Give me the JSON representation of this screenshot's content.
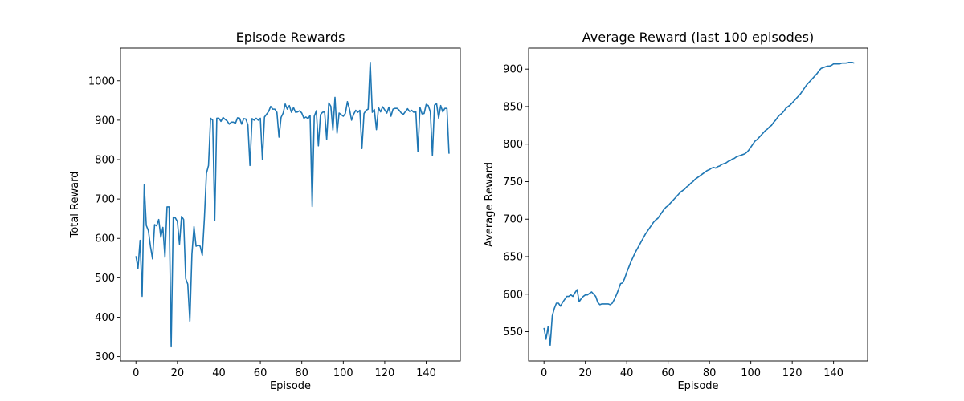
{
  "chart_data": [
    {
      "type": "line",
      "title": "Episode Rewards",
      "xlabel": "Episode",
      "ylabel": "Total Reward",
      "xlim": [
        -7.45,
        156.45
      ],
      "ylim": [
        289,
        1083
      ],
      "xticks": [
        0,
        20,
        40,
        60,
        80,
        100,
        120,
        140
      ],
      "yticks": [
        300,
        400,
        500,
        600,
        700,
        800,
        900,
        1000
      ],
      "grid": false,
      "color": "#1f77b4",
      "series": [
        {
          "values": [
            555,
            524,
            595,
            453,
            736,
            633,
            620,
            580,
            548,
            635,
            632,
            648,
            603,
            628,
            552,
            680,
            680,
            325,
            654,
            652,
            643,
            585,
            656,
            648,
            498,
            484,
            390,
            560,
            630,
            580,
            583,
            580,
            557,
            650,
            765,
            785,
            905,
            900,
            645,
            905,
            905,
            897,
            907,
            902,
            898,
            890,
            895,
            895,
            892,
            906,
            905,
            890,
            904,
            903,
            888,
            785,
            904,
            900,
            905,
            900,
            905,
            800,
            908,
            915,
            922,
            935,
            928,
            928,
            920,
            857,
            907,
            918,
            941,
            928,
            937,
            920,
            932,
            920,
            921,
            924,
            918,
            905,
            908,
            904,
            912,
            681,
            910,
            924,
            835,
            914,
            920,
            921,
            851,
            944,
            935,
            875,
            958,
            867,
            918,
            914,
            910,
            917,
            947,
            928,
            900,
            915,
            925,
            920,
            925,
            828,
            917,
            925,
            928,
            1047,
            920,
            927,
            876,
            932,
            921,
            934,
            926,
            918,
            933,
            910,
            928,
            930,
            930,
            925,
            918,
            915,
            922,
            929,
            922,
            925,
            920,
            922,
            820,
            932,
            916,
            917,
            940,
            937,
            921,
            810,
            938,
            942,
            905,
            937,
            921,
            930,
            930,
            815
          ]
        }
      ]
    },
    {
      "type": "line",
      "title": "Average Reward (last 100 episodes)",
      "xlabel": "Episode",
      "ylabel": "Average Reward",
      "xlim": [
        -7.45,
        156.45
      ],
      "ylim": [
        511,
        928
      ],
      "xticks": [
        0,
        20,
        40,
        60,
        80,
        100,
        120,
        140
      ],
      "yticks": [
        550,
        600,
        650,
        700,
        750,
        800,
        850,
        900
      ],
      "grid": false,
      "color": "#1f77b4",
      "series": [
        {
          "values": [
            555,
            540,
            557,
            532,
            571,
            581,
            588,
            588,
            584,
            589,
            593,
            597,
            597,
            599,
            597,
            602,
            606,
            590,
            594,
            597,
            599,
            599,
            601,
            603,
            600,
            597,
            589,
            586,
            587,
            587,
            587,
            587,
            586,
            588,
            593,
            599,
            606,
            614,
            615,
            621,
            629,
            636,
            643,
            649,
            655,
            660,
            665,
            670,
            675,
            680,
            684,
            688,
            692,
            696,
            699,
            701,
            705,
            709,
            713,
            716,
            718,
            721,
            724,
            727,
            730,
            733,
            736,
            738,
            740,
            743,
            745,
            748,
            750,
            753,
            755,
            757,
            759,
            761,
            763,
            765,
            766,
            768,
            769,
            768,
            770,
            771,
            773,
            774,
            775,
            777,
            778,
            780,
            781,
            783,
            784,
            785,
            786,
            787,
            789,
            792,
            796,
            800,
            804,
            806,
            809,
            812,
            815,
            818,
            820,
            823,
            825,
            829,
            832,
            836,
            839,
            841,
            844,
            848,
            850,
            852,
            855,
            858,
            861,
            864,
            867,
            871,
            875,
            879,
            882,
            885,
            888,
            891,
            894,
            898,
            901,
            902,
            903,
            904,
            904,
            905,
            907,
            907,
            907,
            907,
            908,
            908,
            908,
            909,
            909,
            909,
            908
          ]
        }
      ]
    }
  ]
}
